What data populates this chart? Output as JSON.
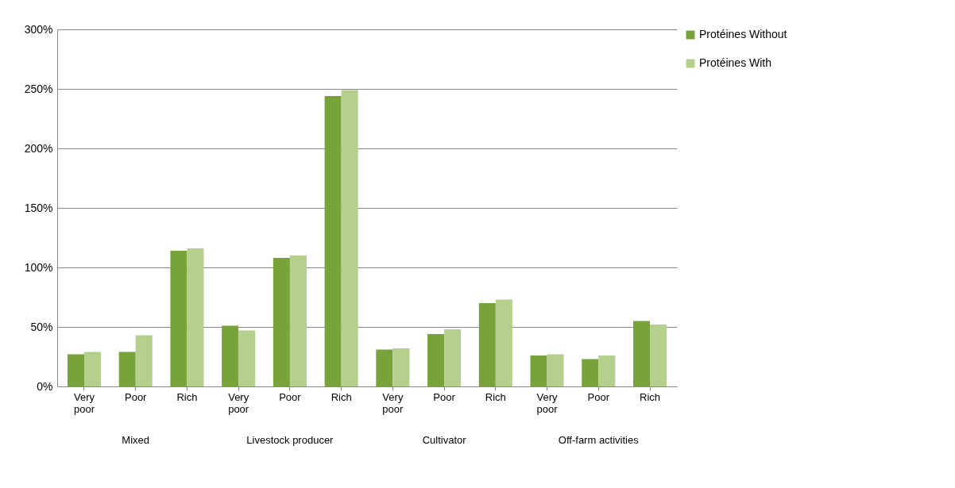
{
  "chart_data": {
    "type": "bar",
    "categories": [
      "Very poor",
      "Poor",
      "Rich",
      "Very poor",
      "Poor",
      "Rich",
      "Very poor",
      "Poor",
      "Rich",
      "Very poor",
      "Poor",
      "Rich"
    ],
    "series": [
      {
        "name": "Protéines Without",
        "color": "#77a33a",
        "values": [
          27,
          29,
          114,
          51,
          108,
          244,
          31,
          44,
          70,
          26,
          23,
          55
        ]
      },
      {
        "name": "Protéines With",
        "color": "#b5cf8c",
        "values": [
          29,
          43,
          116,
          47,
          110,
          249,
          32,
          48,
          73,
          27,
          26,
          52
        ]
      }
    ],
    "annotations": [
      "Mixed",
      "Livestock producer",
      "Cultivator",
      "Off-farm activities"
    ],
    "ylim": [
      0,
      300
    ],
    "yticks": [
      {
        "value": 0,
        "label": "0%"
      },
      {
        "value": 50,
        "label": "50%"
      },
      {
        "value": 100,
        "label": "100%"
      },
      {
        "value": 150,
        "label": "150%"
      },
      {
        "value": 200,
        "label": "200%"
      },
      {
        "value": 250,
        "label": "250%"
      },
      {
        "value": 300,
        "label": "300%"
      }
    ],
    "grid": "y",
    "legend": "right"
  }
}
